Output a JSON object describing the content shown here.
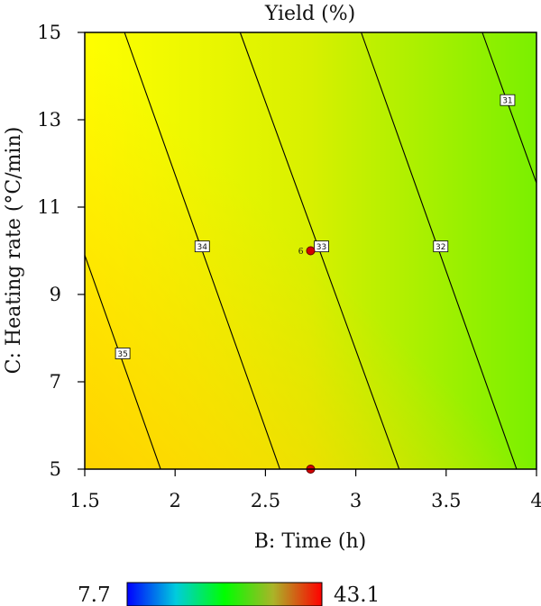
{
  "chart_data": {
    "type": "contour",
    "title": "Yield (%)",
    "xlabel": "B: Time (h)",
    "ylabel": "C: Heating rate (°C/min)",
    "xlim": [
      1.5,
      4
    ],
    "ylim": [
      5,
      15
    ],
    "x_ticks": [
      {
        "value": 1.5,
        "label": "1.5"
      },
      {
        "value": 2,
        "label": "2"
      },
      {
        "value": 2.5,
        "label": "2.5"
      },
      {
        "value": 3,
        "label": "3"
      },
      {
        "value": 3.5,
        "label": "3.5"
      },
      {
        "value": 4,
        "label": "4"
      }
    ],
    "y_ticks": [
      {
        "value": 5,
        "label": "5"
      },
      {
        "value": 7,
        "label": "7"
      },
      {
        "value": 9,
        "label": "9"
      },
      {
        "value": 11,
        "label": "11"
      },
      {
        "value": 13,
        "label": "13"
      },
      {
        "value": 15,
        "label": "15"
      }
    ],
    "grid": false,
    "contours": [
      {
        "level": 35,
        "label": "35",
        "from": [
          1.5,
          9.9
        ],
        "to": [
          1.92,
          5.0
        ],
        "label_at": [
          1.71,
          7.65
        ]
      },
      {
        "level": 34,
        "label": "34",
        "from": [
          1.72,
          15.0
        ],
        "to": [
          2.58,
          5.0
        ],
        "label_at": [
          2.15,
          10.1
        ]
      },
      {
        "level": 33,
        "label": "33",
        "from": [
          2.36,
          15.0
        ],
        "to": [
          3.24,
          5.0
        ],
        "label_at": [
          2.81,
          10.1
        ]
      },
      {
        "level": 32,
        "label": "32",
        "from": [
          3.03,
          15.0
        ],
        "to": [
          3.89,
          5.0
        ],
        "label_at": [
          3.47,
          10.1
        ]
      },
      {
        "level": 31,
        "label": "31",
        "from": [
          3.7,
          15.0
        ],
        "to": [
          4.0,
          11.55
        ],
        "label_at": [
          3.84,
          13.45
        ]
      }
    ],
    "design_points": [
      {
        "x": 2.75,
        "y": 10,
        "label": "6"
      },
      {
        "x": 2.75,
        "y": 5,
        "label": ""
      }
    ],
    "surface_colors": {
      "corner_low_x_low_y": "#ffd200",
      "corner_low_x_high_y": "#ffff00",
      "middle": "#d8f000",
      "corner_high_x_high_y": "#7af000",
      "corner_high_x_low_y": "#b8ec00"
    },
    "colorbar": {
      "min": 7.7,
      "max": 43.1,
      "min_label": "7.7",
      "max_label": "43.1",
      "stops": [
        "#0000ff",
        "#00ccdd",
        "#00ff00",
        "#aab428",
        "#ff0000"
      ]
    }
  }
}
